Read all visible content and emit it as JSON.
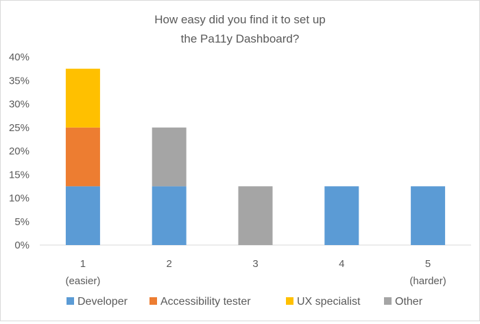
{
  "chart_data": {
    "type": "bar",
    "stacked": true,
    "title": "How easy did you find it to set up the Pa11y Dashboard?",
    "title_lines": [
      "How easy did you find it to set up",
      "the Pa11y Dashboard?"
    ],
    "categories": [
      "1",
      "2",
      "3",
      "4",
      "5"
    ],
    "category_sublabels": [
      "(easier)",
      "",
      "",
      "",
      "(harder)"
    ],
    "series": [
      {
        "name": "Developer",
        "color": "#5b9bd5",
        "values": [
          12.5,
          12.5,
          0,
          12.5,
          12.5
        ]
      },
      {
        "name": "Accessibility tester",
        "color": "#ed7d31",
        "values": [
          12.5,
          0,
          0,
          0,
          0
        ]
      },
      {
        "name": "UX specialist",
        "color": "#ffc000",
        "values": [
          12.5,
          0,
          0,
          0,
          0
        ]
      },
      {
        "name": "Other",
        "color": "#a5a5a5",
        "values": [
          0,
          12.5,
          12.5,
          0,
          0
        ]
      }
    ],
    "y_ticks": [
      "0%",
      "5%",
      "10%",
      "15%",
      "20%",
      "25%",
      "30%",
      "35%",
      "40%"
    ],
    "ylim": [
      0,
      40
    ],
    "y_unit": "%",
    "grid": false,
    "legend_position": "bottom"
  }
}
